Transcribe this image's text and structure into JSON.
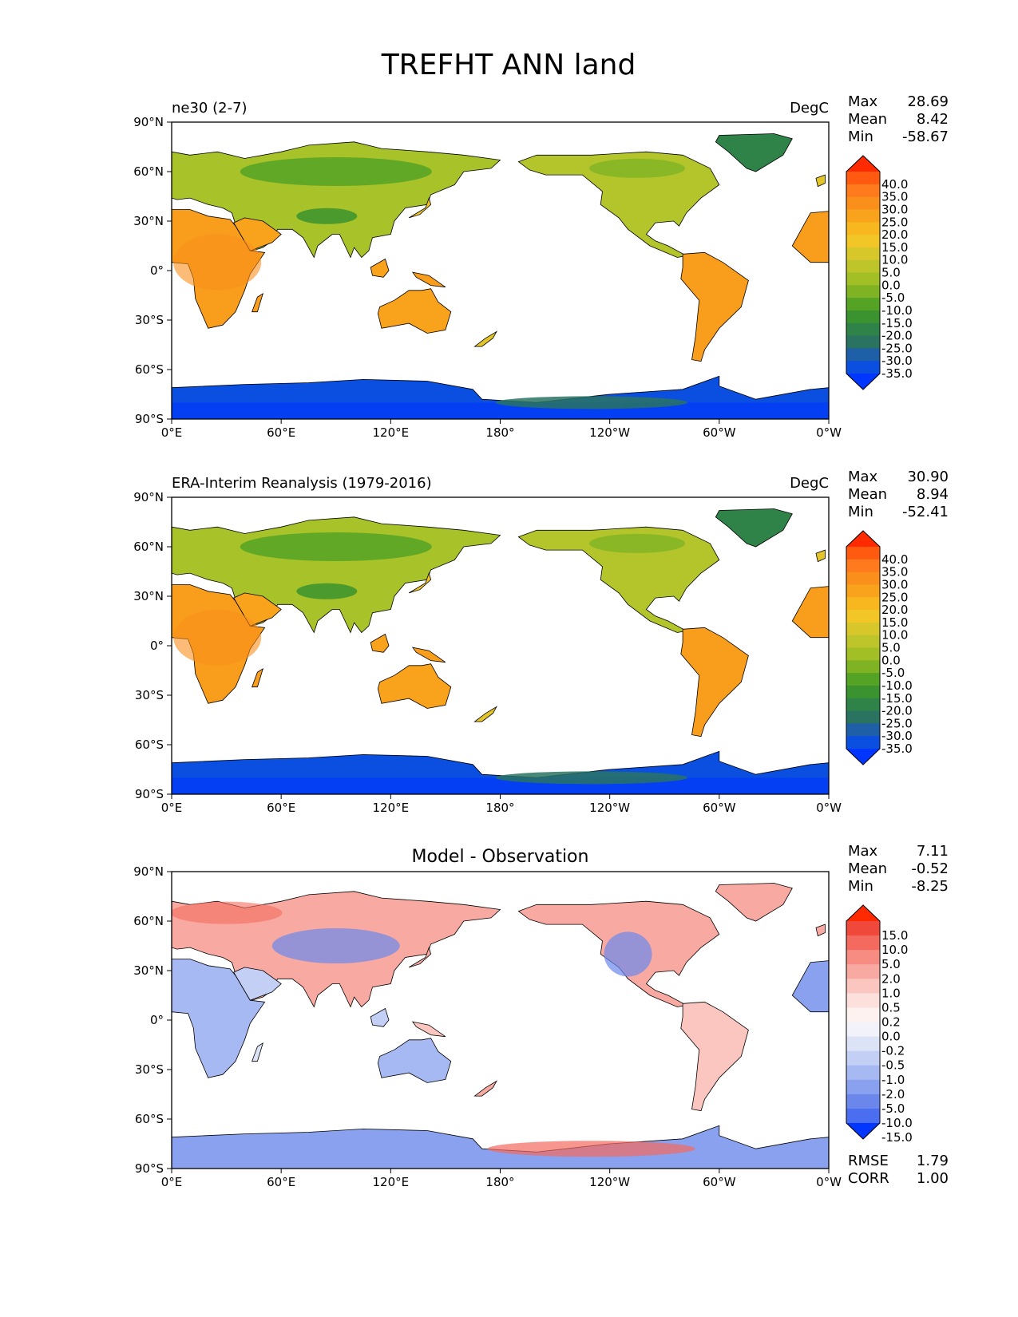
{
  "title": "TREFHT ANN land",
  "lat_ticks": [
    "90°N",
    "60°N",
    "30°N",
    "0°",
    "30°S",
    "60°S",
    "90°S"
  ],
  "lon_ticks": [
    "0°E",
    "60°E",
    "120°E",
    "180°",
    "120°W",
    "60°W",
    "0°W"
  ],
  "panels": [
    {
      "id": "model",
      "title": "",
      "left_label": "ne30 (2-7)",
      "right_label": "DegC",
      "stats": [
        {
          "label": "Max",
          "value": "28.69"
        },
        {
          "label": "Mean",
          "value": "8.42"
        },
        {
          "label": "Min",
          "value": "-58.67"
        }
      ],
      "colorbar": {
        "levels": [
          "40.0",
          "35.0",
          "30.0",
          "25.0",
          "20.0",
          "15.0",
          "10.0",
          "5.0",
          "0.0",
          "-5.0",
          "-10.0",
          "-15.0",
          "-20.0",
          "-25.0",
          "-30.0",
          "-35.0"
        ],
        "colors": [
          "#ff2a00",
          "#ff5a10",
          "#ff7a1c",
          "#fa8f1c",
          "#f9a21c",
          "#f8b71e",
          "#f1c626",
          "#d8c72a",
          "#bec52a",
          "#a3bf26",
          "#7fb324",
          "#54a325",
          "#3a932e",
          "#2f8348",
          "#2a7361",
          "#1f5fa8",
          "#0a4fe0",
          "#0036ff"
        ]
      },
      "extra_stats": []
    },
    {
      "id": "obs",
      "title": "",
      "left_label": "ERA-Interim Reanalysis (1979-2016)",
      "right_label": "DegC",
      "stats": [
        {
          "label": "Max",
          "value": "30.90"
        },
        {
          "label": "Mean",
          "value": "8.94"
        },
        {
          "label": "Min",
          "value": "-52.41"
        }
      ],
      "colorbar": {
        "levels": [
          "40.0",
          "35.0",
          "30.0",
          "25.0",
          "20.0",
          "15.0",
          "10.0",
          "5.0",
          "0.0",
          "-5.0",
          "-10.0",
          "-15.0",
          "-20.0",
          "-25.0",
          "-30.0",
          "-35.0"
        ],
        "colors": [
          "#ff2a00",
          "#ff5a10",
          "#ff7a1c",
          "#fa8f1c",
          "#f9a21c",
          "#f8b71e",
          "#f1c626",
          "#d8c72a",
          "#bec52a",
          "#a3bf26",
          "#7fb324",
          "#54a325",
          "#3a932e",
          "#2f8348",
          "#2a7361",
          "#1f5fa8",
          "#0a4fe0",
          "#0036ff"
        ]
      },
      "extra_stats": []
    },
    {
      "id": "diff",
      "title": "Model - Observation",
      "left_label": "",
      "right_label": "",
      "stats": [
        {
          "label": "Max",
          "value": "7.11"
        },
        {
          "label": "Mean",
          "value": "-0.52"
        },
        {
          "label": "Min",
          "value": "-8.25"
        }
      ],
      "colorbar": {
        "levels": [
          "15.0",
          "10.0",
          "5.0",
          "2.0",
          "1.0",
          "0.5",
          "0.2",
          "0.0",
          "-0.2",
          "-0.5",
          "-1.0",
          "-2.0",
          "-5.0",
          "-10.0",
          "-15.0"
        ],
        "colors": [
          "#ff2a00",
          "#f0483a",
          "#f46a5e",
          "#f78c82",
          "#f8aaa2",
          "#fbc6c0",
          "#fde0dc",
          "#fdf2f0",
          "#f2f2fa",
          "#dde3f7",
          "#c3cff5",
          "#a7b9f2",
          "#8aa1ef",
          "#6b87ec",
          "#4b6df0",
          "#0036ff"
        ]
      },
      "extra_stats": [
        {
          "label": "RMSE",
          "value": "1.79"
        },
        {
          "label": "CORR",
          "value": "1.00"
        }
      ]
    }
  ],
  "chart_data": [
    {
      "type": "heatmap",
      "left_label": "ne30 (2-7)",
      "units": "DegC",
      "xlim": [
        0,
        360
      ],
      "ylim": [
        -90,
        90
      ],
      "levels": [
        -35,
        -30,
        -25,
        -20,
        -15,
        -10,
        -5,
        0,
        5,
        10,
        15,
        20,
        25,
        30,
        35,
        40
      ],
      "stats": {
        "max": 28.69,
        "mean": 8.42,
        "min": -58.67
      }
    },
    {
      "type": "heatmap",
      "left_label": "ERA-Interim Reanalysis (1979-2016)",
      "units": "DegC",
      "xlim": [
        0,
        360
      ],
      "ylim": [
        -90,
        90
      ],
      "levels": [
        -35,
        -30,
        -25,
        -20,
        -15,
        -10,
        -5,
        0,
        5,
        10,
        15,
        20,
        25,
        30,
        35,
        40
      ],
      "stats": {
        "max": 30.9,
        "mean": 8.94,
        "min": -52.41
      }
    },
    {
      "type": "heatmap",
      "title": "Model - Observation",
      "xlim": [
        0,
        360
      ],
      "ylim": [
        -90,
        90
      ],
      "levels": [
        -15,
        -10,
        -5,
        -2,
        -1,
        -0.5,
        -0.2,
        0,
        0.2,
        0.5,
        1,
        2,
        5,
        10,
        15
      ],
      "stats": {
        "max": 7.11,
        "mean": -0.52,
        "min": -8.25,
        "rmse": 1.79,
        "corr": 1.0
      }
    }
  ]
}
